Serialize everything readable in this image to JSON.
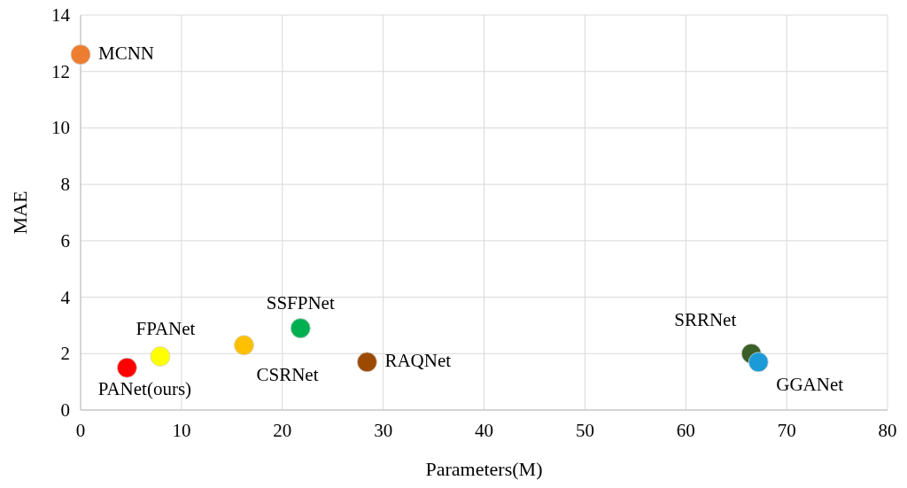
{
  "chart_data": {
    "type": "scatter",
    "xlabel": "Parameters(M)",
    "ylabel": "MAE",
    "xlim": [
      0,
      80
    ],
    "xticks": [
      0,
      10,
      20,
      30,
      40,
      50,
      60,
      70,
      80
    ],
    "ylim": [
      0,
      14
    ],
    "yticks": [
      0,
      2,
      4,
      6,
      8,
      10,
      12,
      14
    ],
    "grid": true,
    "marker": "circle",
    "series": [
      {
        "name": "MCNN",
        "color": "#ed7d31",
        "x": [
          0
        ],
        "values": [
          12.6
        ]
      },
      {
        "name": "PANet(ours)",
        "color": "#ff0000",
        "x": [
          4.6
        ],
        "values": [
          1.5
        ]
      },
      {
        "name": "FPANet",
        "color": "#ffff00",
        "x": [
          7.9
        ],
        "values": [
          1.9
        ]
      },
      {
        "name": "CSRNet",
        "color": "#ffc000",
        "x": [
          16.2
        ],
        "values": [
          2.3
        ]
      },
      {
        "name": "SSFPNet",
        "color": "#00b050",
        "x": [
          21.8
        ],
        "values": [
          2.9
        ]
      },
      {
        "name": "RAQNet",
        "color": "#9c4a00",
        "x": [
          28.4
        ],
        "values": [
          1.7
        ]
      },
      {
        "name": "SRRNet",
        "color": "#3a5f27",
        "x": [
          66.5
        ],
        "values": [
          2.0
        ]
      },
      {
        "name": "GGANet",
        "color": "#1a9bd7",
        "x": [
          67.2
        ],
        "values": [
          1.7
        ]
      }
    ]
  }
}
